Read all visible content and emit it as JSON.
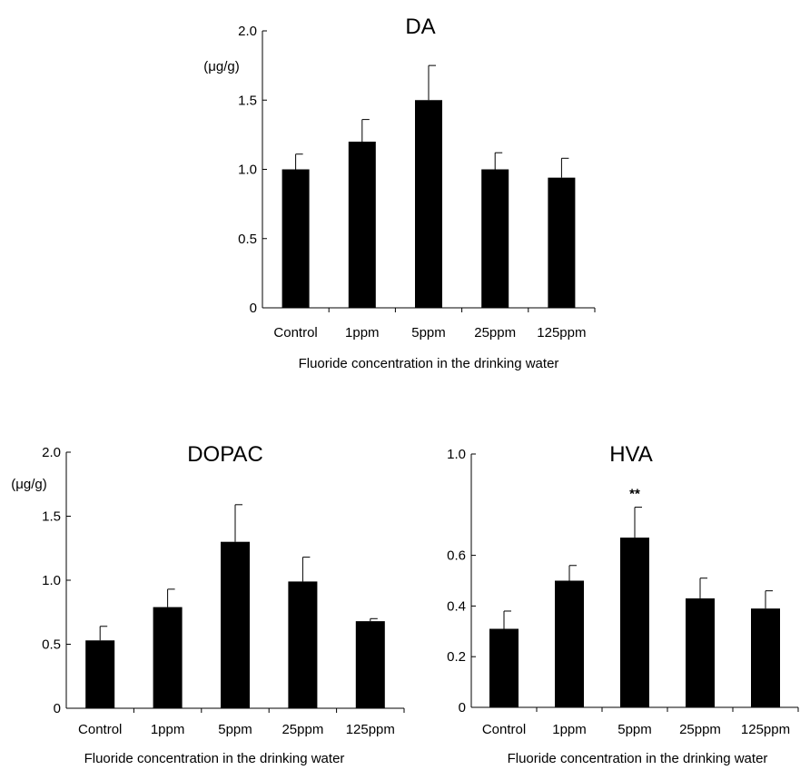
{
  "chart_data": [
    {
      "type": "bar",
      "title": "DA",
      "unit_label": "(μg/g)",
      "xlabel": "Fluoride concentration in the drinking water",
      "ylabel": "",
      "ylim": [
        0,
        2.0
      ],
      "yticks": [
        0,
        0.5,
        1.0,
        1.5,
        2.0
      ],
      "ytick_labels": [
        "0",
        "0.5",
        "1.0",
        "1.5",
        "2.0"
      ],
      "categories": [
        "Control",
        "1ppm",
        "5ppm",
        "25ppm",
        "125ppm"
      ],
      "values": [
        1.0,
        1.2,
        1.5,
        1.0,
        0.94
      ],
      "errors": [
        0.11,
        0.16,
        0.25,
        0.12,
        0.14
      ],
      "annotations": [
        "",
        "",
        "",
        "",
        ""
      ],
      "bar_color": "#000000"
    },
    {
      "type": "bar",
      "title": "DOPAC",
      "unit_label": "(μg/g)",
      "xlabel": "Fluoride concentration in the drinking water",
      "ylabel": "",
      "ylim": [
        0,
        2.0
      ],
      "yticks": [
        0,
        0.5,
        1.0,
        1.5,
        2.0
      ],
      "ytick_labels": [
        "0",
        "0.5",
        "1.0",
        "1.5",
        "2.0"
      ],
      "categories": [
        "Control",
        "1ppm",
        "5ppm",
        "25ppm",
        "125ppm"
      ],
      "values": [
        0.53,
        0.79,
        1.3,
        0.99,
        0.68
      ],
      "errors": [
        0.11,
        0.14,
        0.29,
        0.19,
        0.02
      ],
      "annotations": [
        "",
        "",
        "",
        "",
        ""
      ],
      "bar_color": "#000000"
    },
    {
      "type": "bar",
      "title": "HVA",
      "unit_label": "",
      "xlabel": "Fluoride concentration in the drinking water",
      "ylabel": "",
      "ylim": [
        0,
        1.0
      ],
      "yticks": [
        0,
        0.2,
        0.4,
        0.6,
        1.0
      ],
      "ytick_labels": [
        "0",
        "0.2",
        "0.4",
        "0.6",
        "1.0"
      ],
      "categories": [
        "Control",
        "1ppm",
        "5ppm",
        "25ppm",
        "125ppm"
      ],
      "values": [
        0.31,
        0.5,
        0.67,
        0.43,
        0.39
      ],
      "errors": [
        0.07,
        0.06,
        0.12,
        0.08,
        0.07
      ],
      "annotations": [
        "",
        "",
        "**",
        "",
        ""
      ],
      "bar_color": "#000000"
    }
  ]
}
